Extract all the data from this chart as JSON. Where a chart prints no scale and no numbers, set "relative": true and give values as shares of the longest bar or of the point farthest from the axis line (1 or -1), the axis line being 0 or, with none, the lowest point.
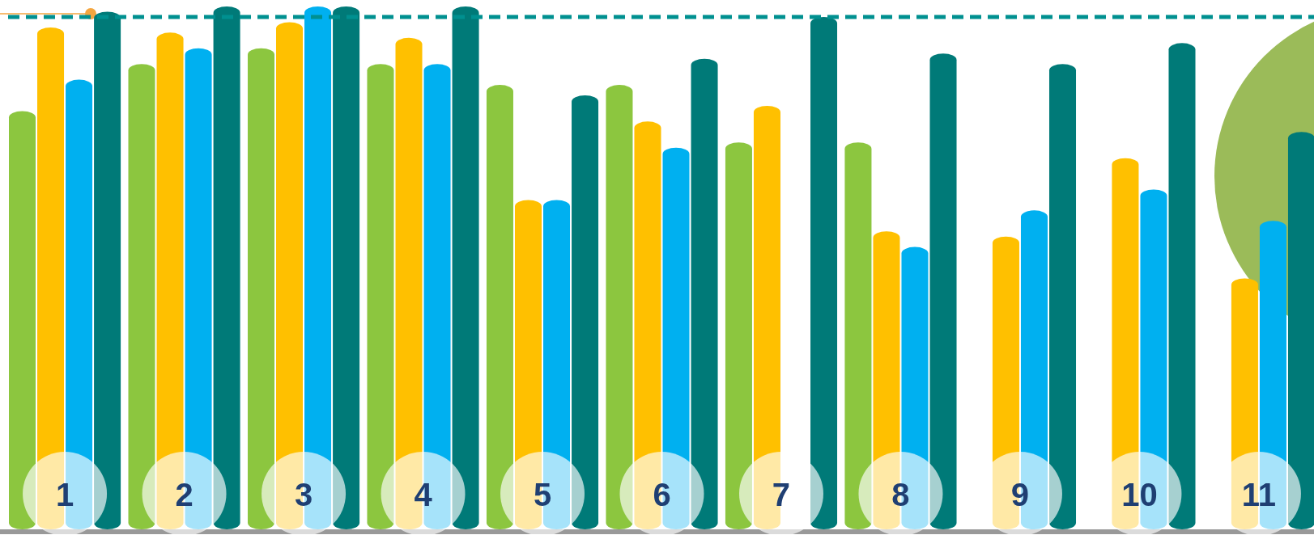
{
  "chart_data": {
    "type": "bar",
    "relative": true,
    "categories": [
      "1",
      "2",
      "3",
      "4",
      "5",
      "6",
      "7",
      "8",
      "9",
      "10",
      "11"
    ],
    "series": [
      {
        "color": "#8cc63f",
        "values": [
          0.8,
          0.89,
          0.92,
          0.89,
          0.85,
          0.85,
          0.74,
          0.74,
          null,
          null,
          null
        ]
      },
      {
        "color": "#ffc000",
        "values": [
          0.96,
          0.95,
          0.97,
          0.94,
          0.63,
          0.78,
          0.81,
          0.57,
          0.56,
          0.71,
          0.48
        ]
      },
      {
        "color": "#00b0f0",
        "values": [
          0.86,
          0.92,
          1,
          0.89,
          0.63,
          0.73,
          null,
          0.54,
          0.61,
          0.65,
          0.59
        ]
      },
      {
        "color": "#007a78",
        "values": [
          0.99,
          1,
          1,
          1,
          0.83,
          0.9,
          0.98,
          0.91,
          0.89,
          0.93,
          0.76
        ]
      }
    ],
    "ref_lines": [
      {
        "axis": "y",
        "value": 0.98,
        "color": "#009090",
        "line_style": "dashed"
      }
    ]
  }
}
